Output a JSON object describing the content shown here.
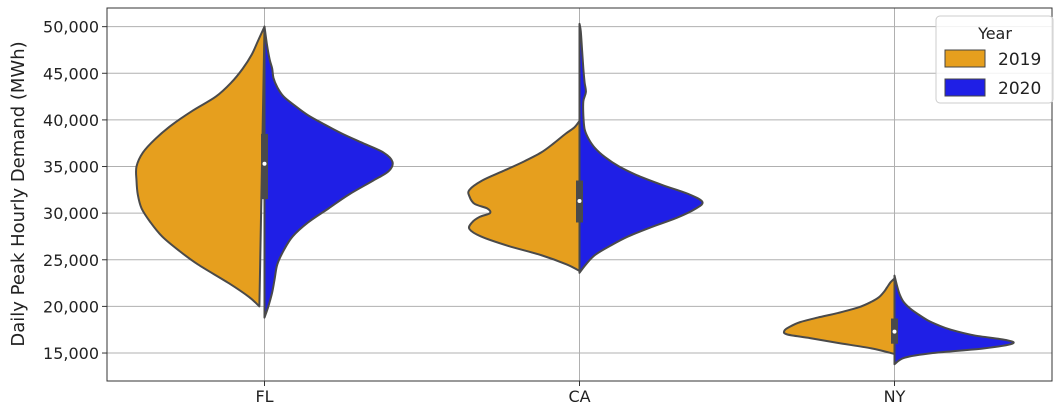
{
  "chart_data": {
    "type": "violin",
    "split": true,
    "title": "",
    "xlabel": "",
    "ylabel": "Daily Peak Hourly Demand (MWh)",
    "ylim": [
      12000,
      52000
    ],
    "yticks": [
      15000,
      20000,
      25000,
      30000,
      35000,
      40000,
      45000,
      50000
    ],
    "ytick_labels": [
      "15,000",
      "20,000",
      "25,000",
      "30,000",
      "35,000",
      "40,000",
      "45,000",
      "50,000"
    ],
    "categories": [
      "FL",
      "CA",
      "NY"
    ],
    "grid": true,
    "legend": {
      "title": "Year",
      "placement": "top-right"
    },
    "series": [
      {
        "name": "2019",
        "color": "#e69f1e",
        "violins": [
          {
            "category": "FL",
            "range": [
              20000,
              50000
            ],
            "density": [
              [
                20000,
                0.04
              ],
              [
                21000,
                0.12
              ],
              [
                22500,
                0.28
              ],
              [
                24500,
                0.52
              ],
              [
                26000,
                0.67
              ],
              [
                27500,
                0.8
              ],
              [
                29000,
                0.89
              ],
              [
                30500,
                0.96
              ],
              [
                32000,
                0.99
              ],
              [
                33500,
                1.0
              ],
              [
                35000,
                1.0
              ],
              [
                36500,
                0.95
              ],
              [
                38000,
                0.85
              ],
              [
                39500,
                0.72
              ],
              [
                41000,
                0.56
              ],
              [
                42500,
                0.38
              ],
              [
                44000,
                0.26
              ],
              [
                45500,
                0.17
              ],
              [
                47000,
                0.1
              ],
              [
                48500,
                0.05
              ],
              [
                50000,
                0.0
              ]
            ]
          },
          {
            "category": "CA",
            "range": [
              23800,
              39900
            ],
            "density": [
              [
                23800,
                0.0
              ],
              [
                24500,
                0.1
              ],
              [
                25500,
                0.3
              ],
              [
                26500,
                0.56
              ],
              [
                27500,
                0.77
              ],
              [
                28300,
                0.86
              ],
              [
                29000,
                0.84
              ],
              [
                29600,
                0.78
              ],
              [
                30000,
                0.7
              ],
              [
                30500,
                0.72
              ],
              [
                31000,
                0.82
              ],
              [
                31800,
                0.86
              ],
              [
                32500,
                0.86
              ],
              [
                33500,
                0.76
              ],
              [
                34500,
                0.6
              ],
              [
                35500,
                0.44
              ],
              [
                36500,
                0.3
              ],
              [
                37500,
                0.2
              ],
              [
                38500,
                0.11
              ],
              [
                39200,
                0.04
              ],
              [
                39900,
                0.0
              ]
            ]
          },
          {
            "category": "NY",
            "range": [
              14900,
              23000
            ],
            "density": [
              [
                14900,
                0.0
              ],
              [
                15500,
                0.18
              ],
              [
                16100,
                0.45
              ],
              [
                16600,
                0.66
              ],
              [
                17000,
                0.84
              ],
              [
                17400,
                0.86
              ],
              [
                17800,
                0.82
              ],
              [
                18300,
                0.74
              ],
              [
                18800,
                0.6
              ],
              [
                19300,
                0.44
              ],
              [
                19900,
                0.28
              ],
              [
                20500,
                0.18
              ],
              [
                21000,
                0.12
              ],
              [
                21600,
                0.08
              ],
              [
                22000,
                0.06
              ],
              [
                22600,
                0.03
              ],
              [
                23000,
                0.0
              ]
            ]
          }
        ],
        "box": [
          {
            "category": "FL",
            "q1": 31500,
            "median": 35300,
            "q3": 38500
          },
          {
            "category": "CA",
            "q1": 29000,
            "median": 31300,
            "q3": 33500
          },
          {
            "category": "NY",
            "q1": 16000,
            "median": 17300,
            "q3": 18700
          }
        ]
      },
      {
        "name": "2020",
        "color": "#1f1fe6",
        "violins": [
          {
            "category": "FL",
            "range": [
              18800,
              50000
            ],
            "density": [
              [
                18800,
                0.0
              ],
              [
                20000,
                0.03
              ],
              [
                21500,
                0.06
              ],
              [
                23000,
                0.08
              ],
              [
                24500,
                0.1
              ],
              [
                26000,
                0.15
              ],
              [
                27500,
                0.22
              ],
              [
                29000,
                0.34
              ],
              [
                30500,
                0.5
              ],
              [
                32000,
                0.66
              ],
              [
                33500,
                0.85
              ],
              [
                34500,
                0.97
              ],
              [
                35500,
                1.0
              ],
              [
                36500,
                0.93
              ],
              [
                37500,
                0.77
              ],
              [
                38500,
                0.61
              ],
              [
                39500,
                0.47
              ],
              [
                40500,
                0.34
              ],
              [
                41500,
                0.24
              ],
              [
                42500,
                0.15
              ],
              [
                43500,
                0.1
              ],
              [
                44500,
                0.07
              ],
              [
                45500,
                0.06
              ],
              [
                46500,
                0.04
              ],
              [
                48000,
                0.02
              ],
              [
                50000,
                0.0
              ]
            ]
          },
          {
            "category": "CA",
            "range": [
              23600,
              50300
            ],
            "density": [
              [
                23600,
                0.0
              ],
              [
                24500,
                0.05
              ],
              [
                25500,
                0.12
              ],
              [
                26500,
                0.24
              ],
              [
                27500,
                0.38
              ],
              [
                28500,
                0.56
              ],
              [
                29500,
                0.76
              ],
              [
                30500,
                0.91
              ],
              [
                31200,
                0.96
              ],
              [
                32000,
                0.86
              ],
              [
                33000,
                0.65
              ],
              [
                34000,
                0.46
              ],
              [
                35000,
                0.31
              ],
              [
                36000,
                0.2
              ],
              [
                37000,
                0.12
              ],
              [
                38000,
                0.07
              ],
              [
                39000,
                0.04
              ],
              [
                40500,
                0.03
              ],
              [
                42000,
                0.03
              ],
              [
                43000,
                0.05
              ],
              [
                44000,
                0.04
              ],
              [
                45500,
                0.03
              ],
              [
                47500,
                0.02
              ],
              [
                49500,
                0.01
              ],
              [
                50300,
                0.0
              ]
            ]
          },
          {
            "category": "NY",
            "range": [
              13800,
              23300
            ],
            "density": [
              [
                13800,
                0.0
              ],
              [
                14500,
                0.08
              ],
              [
                15000,
                0.3
              ],
              [
                15500,
                0.7
              ],
              [
                16000,
                0.92
              ],
              [
                16400,
                0.87
              ],
              [
                16900,
                0.62
              ],
              [
                17500,
                0.44
              ],
              [
                18000,
                0.34
              ],
              [
                18500,
                0.26
              ],
              [
                19200,
                0.18
              ],
              [
                19800,
                0.12
              ],
              [
                20500,
                0.07
              ],
              [
                21300,
                0.04
              ],
              [
                22200,
                0.02
              ],
              [
                23300,
                0.0
              ]
            ]
          }
        ],
        "box": [
          {
            "category": "FL",
            "q1": 31500,
            "median": 35300,
            "q3": 38500
          },
          {
            "category": "CA",
            "q1": 29000,
            "median": 31300,
            "q3": 33500
          },
          {
            "category": "NY",
            "q1": 16000,
            "median": 17300,
            "q3": 18700
          }
        ]
      }
    ]
  }
}
